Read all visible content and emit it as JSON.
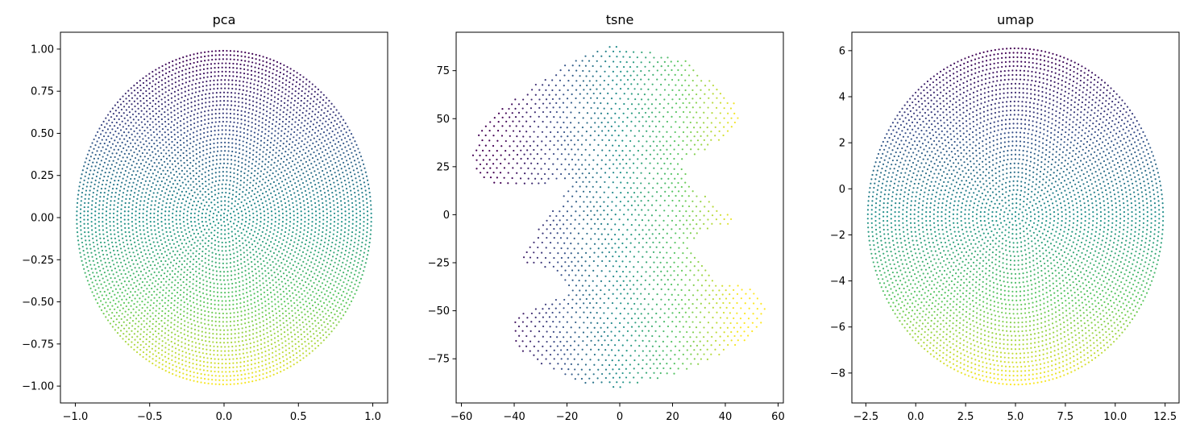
{
  "figure": {
    "colormap": "viridis",
    "colormap_stops": [
      "#440154",
      "#3b528b",
      "#21918c",
      "#5ec962",
      "#fde725"
    ],
    "background": "#ffffff",
    "axes_color": "#000000"
  },
  "chart_data": [
    {
      "type": "scatter",
      "title": "pca",
      "xlabel": "",
      "ylabel": "",
      "xlim": [
        -1.1,
        1.1
      ],
      "ylim": [
        -1.1,
        1.1
      ],
      "xticks": [
        -1.0,
        -0.5,
        0.0,
        0.5,
        1.0
      ],
      "xtick_labels": [
        "−1.0",
        "−0.5",
        "0.0",
        "0.5",
        "1.0"
      ],
      "yticks": [
        -1.0,
        -0.75,
        -0.5,
        -0.25,
        0.0,
        0.25,
        0.5,
        0.75,
        1.0
      ],
      "ytick_labels": [
        "−1.00",
        "−0.75",
        "−0.50",
        "−0.25",
        "0.00",
        "0.25",
        "0.50",
        "0.75",
        "1.00"
      ],
      "grid": false,
      "shape": {
        "kind": "disk",
        "center": [
          0.0,
          0.0
        ],
        "radius_x": 0.99,
        "radius_y": 0.99,
        "n_rings": 40,
        "color_by": "y",
        "color_low": -1.0,
        "color_high": 1.0,
        "invert_color": true
      }
    },
    {
      "type": "scatter",
      "title": "tsne",
      "xlabel": "",
      "ylabel": "",
      "xlim": [
        -62,
        62
      ],
      "ylim": [
        -98,
        95
      ],
      "xticks": [
        -60,
        -40,
        -20,
        0,
        20,
        40,
        60
      ],
      "xtick_labels": [
        "−60",
        "−40",
        "−20",
        "0",
        "20",
        "40",
        "60"
      ],
      "yticks": [
        -75,
        -50,
        -25,
        0,
        25,
        50,
        75
      ],
      "ytick_labels": [
        "−75",
        "−50",
        "−25",
        "0",
        "25",
        "50",
        "75"
      ],
      "grid": false,
      "shape": {
        "kind": "polygon",
        "outline": [
          [
            -5,
            88
          ],
          [
            10,
            86
          ],
          [
            25,
            80
          ],
          [
            36,
            68
          ],
          [
            44,
            58
          ],
          [
            45,
            50
          ],
          [
            40,
            40
          ],
          [
            30,
            32
          ],
          [
            22,
            28
          ],
          [
            28,
            15
          ],
          [
            36,
            5
          ],
          [
            45,
            -4
          ],
          [
            34,
            -8
          ],
          [
            26,
            -14
          ],
          [
            30,
            -24
          ],
          [
            37,
            -36
          ],
          [
            50,
            -37
          ],
          [
            56,
            -46
          ],
          [
            54,
            -58
          ],
          [
            45,
            -68
          ],
          [
            30,
            -78
          ],
          [
            15,
            -86
          ],
          [
            0,
            -90
          ],
          [
            -15,
            -88
          ],
          [
            -30,
            -78
          ],
          [
            -40,
            -68
          ],
          [
            -40,
            -52
          ],
          [
            -28,
            -46
          ],
          [
            -18,
            -40
          ],
          [
            -25,
            -30
          ],
          [
            -37,
            -24
          ],
          [
            -33,
            -12
          ],
          [
            -28,
            -2
          ],
          [
            -22,
            8
          ],
          [
            -18,
            18
          ],
          [
            -30,
            16
          ],
          [
            -45,
            14
          ],
          [
            -55,
            20
          ],
          [
            -56,
            35
          ],
          [
            -50,
            50
          ],
          [
            -40,
            60
          ],
          [
            -30,
            70
          ],
          [
            -18,
            80
          ]
        ],
        "grid_step": 2.8,
        "color_by": "x",
        "color_low": -45,
        "color_high": 45,
        "invert_color": false
      }
    },
    {
      "type": "scatter",
      "title": "umap",
      "xlabel": "",
      "ylabel": "",
      "xlim": [
        -3.2,
        13.2
      ],
      "ylim": [
        -9.3,
        6.8
      ],
      "xticks": [
        -2.5,
        0.0,
        2.5,
        5.0,
        7.5,
        10.0,
        12.5
      ],
      "xtick_labels": [
        "−2.5",
        "0.0",
        "2.5",
        "5.0",
        "7.5",
        "10.0",
        "12.5"
      ],
      "yticks": [
        -8,
        -6,
        -4,
        -2,
        0,
        2,
        4,
        6
      ],
      "ytick_labels": [
        "−8",
        "−6",
        "−4",
        "−2",
        "0",
        "2",
        "4",
        "6"
      ],
      "grid": false,
      "shape": {
        "kind": "disk",
        "center": [
          5.0,
          -1.2
        ],
        "radius_x": 7.4,
        "radius_y": 7.3,
        "n_rings": 38,
        "color_by": "y",
        "color_low": -8.5,
        "color_high": 6.1,
        "invert_color": true
      }
    }
  ]
}
